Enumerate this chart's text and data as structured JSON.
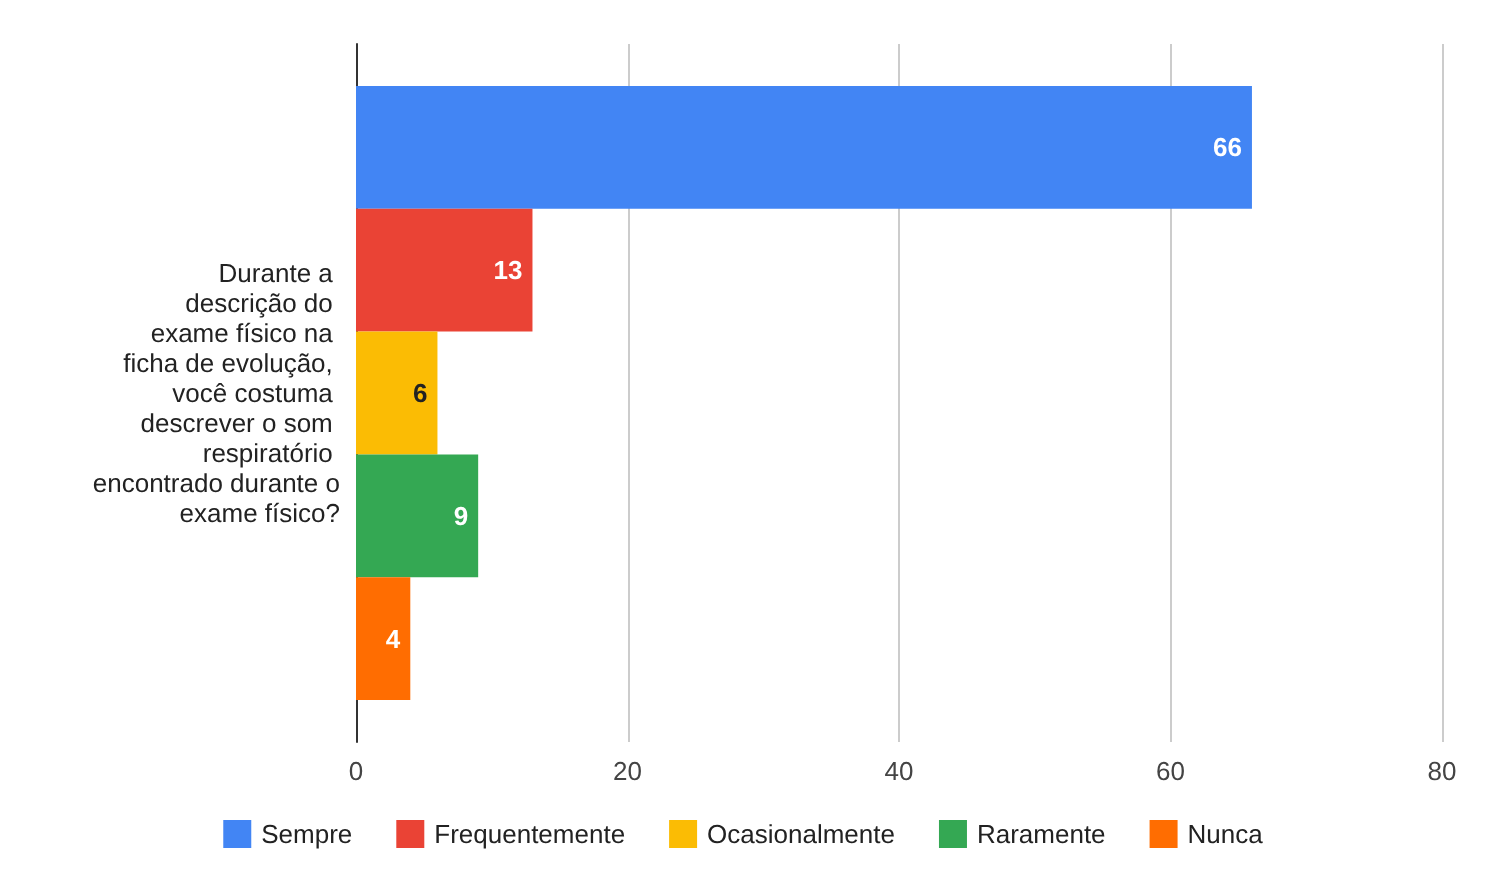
{
  "chart_data": {
    "type": "bar",
    "orientation": "horizontal",
    "categories": [
      "Durante a descrição do exame físico na ficha de evolução, você costuma descrever o som respiratório encontrado durante o exame físico?"
    ],
    "series": [
      {
        "name": "Sempre",
        "color": "#4285f4",
        "values": [
          66
        ]
      },
      {
        "name": "Frequentemente",
        "color": "#ea4335",
        "values": [
          13
        ]
      },
      {
        "name": "Ocasionalmente",
        "color": "#fbbc04",
        "values": [
          6
        ]
      },
      {
        "name": "Raramente",
        "color": "#34a853",
        "values": [
          9
        ]
      },
      {
        "name": "Nunca",
        "color": "#ff6d01",
        "values": [
          4
        ]
      }
    ],
    "xlim": [
      0,
      80
    ],
    "xticks": [
      0,
      20,
      40,
      60,
      80
    ],
    "grid": "x",
    "legend": "bottom",
    "data_labels": true
  }
}
